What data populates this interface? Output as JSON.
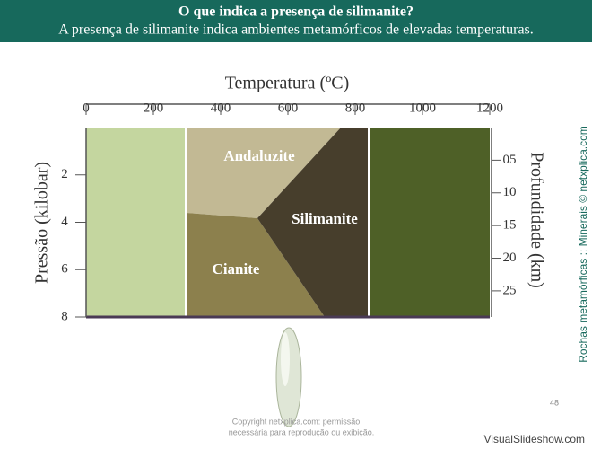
{
  "header": {
    "title": "O que indica a presença de silimanite?",
    "subtitle": "A presença de silimanite indica ambientes metamórficos de elevadas temperaturas."
  },
  "diagram": {
    "x_axis": {
      "label": "Temperatura (ºC)",
      "lim": [
        0,
        1200
      ],
      "ticks": [
        0,
        200,
        400,
        600,
        800,
        1000,
        1200
      ]
    },
    "y_axis": {
      "label": "Pressão (kilobar)",
      "lim": [
        0,
        8
      ],
      "ticks": [
        2,
        4,
        6,
        8
      ]
    },
    "y2_axis": {
      "label": "Profundidade (km)",
      "lim": [
        0,
        29
      ],
      "ticks": [
        {
          "value": 5,
          "label": "05"
        },
        10,
        15,
        20,
        25
      ]
    },
    "regions": [
      "Andaluzite",
      "Silimanite",
      "Cianite"
    ]
  },
  "side_note": "Rochas metamórficas :: Minerais © netxplica.com",
  "footer": {
    "copyright_line1": "Copyright netxplica.com: permissão",
    "copyright_line2": "necessária para reprodução ou exibição.",
    "page": "48",
    "brand": "VisualSlideshow.com"
  }
}
